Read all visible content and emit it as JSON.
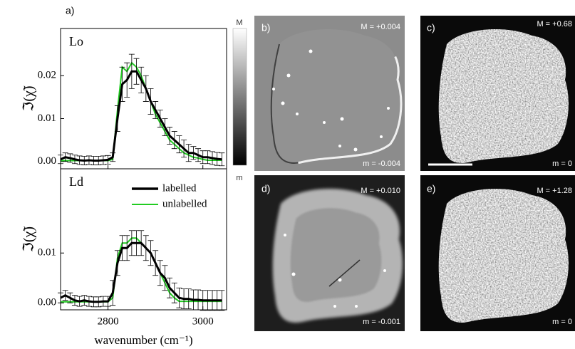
{
  "chart_data": [
    {
      "type": "line",
      "panel_label": "a)",
      "label": "Lo",
      "ylabel": "ℑ(χ̃)",
      "x": [
        2700,
        2710,
        2720,
        2730,
        2740,
        2750,
        2760,
        2770,
        2780,
        2790,
        2800,
        2810,
        2820,
        2830,
        2840,
        2850,
        2860,
        2870,
        2880,
        2890,
        2900,
        2910,
        2920,
        2930,
        2940,
        2950,
        2960,
        2970,
        2980,
        2990,
        3000,
        3010,
        3020,
        3030,
        3040
      ],
      "series": [
        {
          "color": "#000000",
          "values": [
            0.0005,
            0.001,
            0.0008,
            0.0005,
            0.0003,
            0.0002,
            0.0003,
            0.0002,
            0.0002,
            0.0003,
            0.0004,
            0.001,
            0.01,
            0.018,
            0.019,
            0.021,
            0.021,
            0.019,
            0.017,
            0.014,
            0.012,
            0.01,
            0.008,
            0.006,
            0.005,
            0.004,
            0.003,
            0.002,
            0.002,
            0.0015,
            0.001,
            0.001,
            0.0008,
            0.0006,
            0.0005
          ],
          "errors": [
            0.001,
            0.001,
            0.001,
            0.001,
            0.001,
            0.001,
            0.001,
            0.001,
            0.001,
            0.001,
            0.001,
            0.001,
            0.003,
            0.004,
            0.004,
            0.004,
            0.003,
            0.003,
            0.003,
            0.003,
            0.002,
            0.002,
            0.002,
            0.002,
            0.002,
            0.002,
            0.002,
            0.002,
            0.0015,
            0.0015,
            0.0015,
            0.0015,
            0.0015,
            0.0015,
            0.0015
          ]
        },
        {
          "color": "#22cc22",
          "values": [
            0.0002,
            0.0002,
            0.0002,
            0.0002,
            0.0002,
            0.0002,
            0.0002,
            0.0002,
            0.0002,
            0.0002,
            0.0002,
            0.0005,
            0.012,
            0.022,
            0.021,
            0.023,
            0.022,
            0.02,
            0.017,
            0.014,
            0.011,
            0.009,
            0.007,
            0.005,
            0.004,
            0.003,
            0.002,
            0.0015,
            0.001,
            0.0008,
            0.0005,
            0.0003,
            0.0003,
            0.0003,
            0.0003
          ]
        }
      ],
      "xlim": [
        2700,
        3050
      ],
      "xticks": [
        2800,
        3000
      ],
      "show_xtick_labels": false,
      "ylim": [
        -0.0017,
        0.031
      ],
      "yticks": [
        {
          "value": 0,
          "label": "0.00"
        },
        {
          "value": 0.01,
          "label": "0.01"
        },
        {
          "value": 0.02,
          "label": "0.02"
        }
      ],
      "legend": false
    },
    {
      "type": "line",
      "label": "Ld",
      "ylabel": "ℑ(χ̃)",
      "xlabel": "wavenumber (cm⁻¹)",
      "x": [
        2700,
        2710,
        2720,
        2730,
        2740,
        2750,
        2760,
        2770,
        2780,
        2790,
        2800,
        2810,
        2820,
        2830,
        2840,
        2850,
        2860,
        2870,
        2880,
        2890,
        2900,
        2910,
        2920,
        2930,
        2940,
        2950,
        2960,
        2970,
        2980,
        2990,
        3000,
        3010,
        3020,
        3030,
        3040
      ],
      "series": [
        {
          "name": "labelled",
          "color": "#000000",
          "values": [
            0.001,
            0.0015,
            0.001,
            0.0005,
            0.0003,
            0.0005,
            0.0003,
            0.0002,
            0.0002,
            0.0003,
            0.0003,
            0.002,
            0.008,
            0.011,
            0.011,
            0.012,
            0.012,
            0.012,
            0.011,
            0.01,
            0.008,
            0.006,
            0.005,
            0.003,
            0.002,
            0.001,
            0.0008,
            0.0008,
            0.0006,
            0.0006,
            0.0005,
            0.0005,
            0.0005,
            0.0005,
            0.0005
          ],
          "errors": [
            0.001,
            0.001,
            0.001,
            0.001,
            0.001,
            0.001,
            0.001,
            0.001,
            0.001,
            0.001,
            0.001,
            0.0025,
            0.0025,
            0.0025,
            0.0025,
            0.0025,
            0.0025,
            0.0025,
            0.0025,
            0.0025,
            0.0025,
            0.0025,
            0.0025,
            0.002,
            0.002,
            0.002,
            0.002,
            0.002,
            0.002,
            0.002,
            0.002,
            0.002,
            0.002,
            0.002,
            0.002
          ]
        },
        {
          "name": "unlabelled",
          "color": "#22cc22",
          "values": [
            0.0002,
            0.0002,
            0.0002,
            0.0002,
            0.0002,
            0.0002,
            0.0002,
            0.0002,
            0.0002,
            0.0002,
            0.0002,
            0.001,
            0.009,
            0.012,
            0.012,
            0.013,
            0.013,
            0.012,
            0.011,
            0.01,
            0.008,
            0.006,
            0.004,
            0.002,
            0.001,
            0.0003,
            0.0003,
            0.0003,
            0.0003,
            0.0003,
            0.0003,
            0.0003,
            0.0003,
            0.0003,
            0.0003
          ]
        }
      ],
      "xlim": [
        2700,
        3050
      ],
      "xticks": [
        2800,
        3000
      ],
      "show_xtick_labels": true,
      "ylim": [
        -0.0014,
        0.0269
      ],
      "yticks": [
        {
          "value": 0,
          "label": "0.00"
        },
        {
          "value": 0.01,
          "label": "0.01"
        }
      ],
      "legend": true
    }
  ],
  "colorbar": {
    "max": "M",
    "min": "m"
  },
  "panels": [
    {
      "label": "b)",
      "max": "M = +0.004",
      "min": "m = -0.004"
    },
    {
      "label": "c)",
      "max": "M = +0.68",
      "min": "m = 0"
    },
    {
      "label": "d)",
      "max": "M = +0.010",
      "min": "m = -0.001"
    },
    {
      "label": "e)",
      "max": "M = +1.28",
      "min": "m = 0"
    }
  ]
}
